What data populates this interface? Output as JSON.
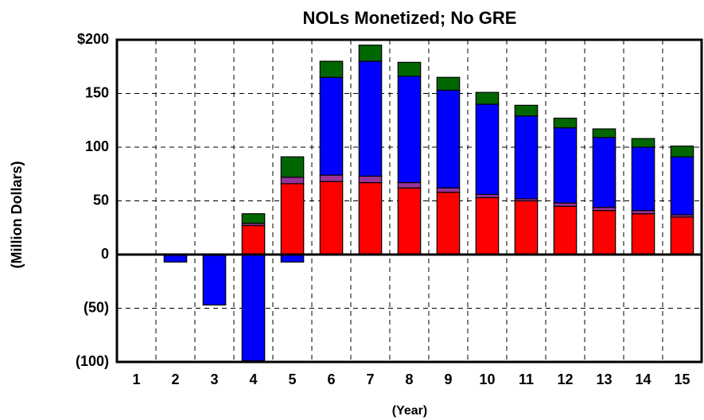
{
  "chart_data": {
    "type": "stacked_bar",
    "title": "NOLs Monetized; No GRE",
    "y_label": "(Million Dollars)",
    "x_label": "(Year)",
    "categories": [
      "1",
      "2",
      "3",
      "4",
      "5",
      "6",
      "7",
      "8",
      "9",
      "10",
      "11",
      "12",
      "13",
      "14",
      "15"
    ],
    "series": [
      {
        "color": "#ff0000",
        "values": [
          0,
          0,
          0,
          27,
          66,
          68,
          67,
          62,
          58,
          53,
          50,
          45,
          41,
          38,
          35
        ]
      },
      {
        "color": "#993399",
        "values": [
          0,
          0,
          0,
          2,
          6,
          6,
          6,
          5,
          4,
          3,
          2,
          3,
          3,
          3,
          2
        ]
      },
      {
        "color": "#0000ff",
        "values": [
          0,
          -7,
          -47,
          -99,
          -7,
          91,
          107,
          99,
          91,
          84,
          77,
          70,
          65,
          59,
          54
        ]
      },
      {
        "color": "#006600",
        "values": [
          0,
          0,
          0,
          9,
          19,
          15,
          15,
          13,
          12,
          11,
          10,
          9,
          8,
          8,
          10
        ]
      }
    ],
    "ylim": [
      -100,
      200
    ],
    "yticks": [
      {
        "value": -100,
        "label": "(100)"
      },
      {
        "value": -50,
        "label": "(50)"
      },
      0,
      50,
      100,
      150,
      {
        "value": 200,
        "label": "$200"
      }
    ],
    "grid": true
  }
}
